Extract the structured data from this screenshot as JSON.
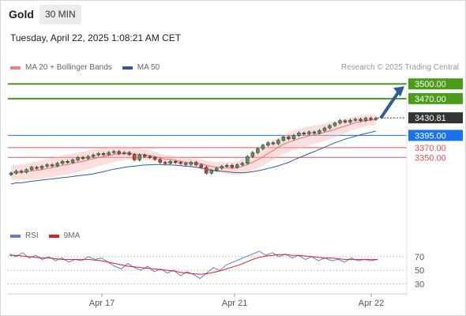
{
  "header": {
    "asset": "Gold",
    "timeframe": "30 MIN",
    "timestamp": "Tuesday, April 22, 2025 1:08:21 AM CET"
  },
  "legend": {
    "ma20": "MA 20 + Bollinger Bands",
    "ma50": "MA 50",
    "credit": "Research © 2025 Trading Central",
    "ma20_color": "#f08080",
    "ma50_color": "#2e5c9a"
  },
  "rsi_legend": {
    "rsi": "RSI",
    "ma9": "9MA",
    "rsi_color": "#5b7fd6",
    "ma9_color": "#e02020"
  },
  "chart_data": [
    {
      "type": "candlestick",
      "title": "Gold 30 MIN",
      "xlabel": "",
      "ylabel": "",
      "x_ticks": [
        "Apr 17",
        "Apr 21",
        "Apr 22"
      ],
      "ylim": [
        3220,
        3510
      ],
      "series": [
        {
          "name": "MA 20 + Bollinger Bands",
          "color": "#f08080"
        },
        {
          "name": "MA 50",
          "color": "#2e5c9a"
        }
      ],
      "price_levels": [
        {
          "label": "3500.00",
          "value": 3500.0,
          "color": "#4a9c1a",
          "kind": "resistance"
        },
        {
          "label": "3470.00",
          "value": 3470.0,
          "color": "#4a9c1a",
          "kind": "resistance"
        },
        {
          "label": "3430.81",
          "value": 3430.81,
          "color": "#333333",
          "kind": "last"
        },
        {
          "label": "3395.00",
          "value": 3395.0,
          "color": "#1a73e8",
          "kind": "pivot"
        },
        {
          "label": "3370.00",
          "value": 3370.0,
          "color": "#e05050",
          "kind": "support"
        },
        {
          "label": "3350.00",
          "value": 3350.0,
          "color": "#e05050",
          "kind": "support"
        }
      ],
      "arrow": {
        "direction": "up",
        "color": "#2e5c9a"
      },
      "closes": [
        3318,
        3322,
        3320,
        3325,
        3330,
        3328,
        3332,
        3335,
        3333,
        3338,
        3342,
        3340,
        3345,
        3350,
        3348,
        3352,
        3355,
        3358,
        3356,
        3360,
        3362,
        3358,
        3360,
        3356,
        3345,
        3355,
        3352,
        3350,
        3346,
        3340,
        3338,
        3342,
        3340,
        3338,
        3336,
        3340,
        3335,
        3330,
        3318,
        3324,
        3328,
        3332,
        3334,
        3330,
        3335,
        3338,
        3352,
        3360,
        3368,
        3375,
        3380,
        3378,
        3385,
        3392,
        3388,
        3395,
        3400,
        3398,
        3402,
        3400,
        3405,
        3410,
        3415,
        3420,
        3425,
        3422,
        3426,
        3428,
        3425,
        3430,
        3428,
        3430
      ]
    },
    {
      "type": "line",
      "title": "RSI",
      "xlabel": "",
      "ylabel": "",
      "yticks": [
        70,
        50,
        30
      ],
      "ylim": [
        20,
        85
      ],
      "series": [
        {
          "name": "RSI",
          "color": "#5b7fd6",
          "values": [
            74,
            70,
            76,
            68,
            72,
            66,
            70,
            64,
            68,
            62,
            66,
            64,
            70,
            66,
            68,
            62,
            56,
            52,
            60,
            54,
            50,
            56,
            48,
            52,
            46,
            50,
            42,
            48,
            44,
            38,
            46,
            54,
            50,
            58,
            62,
            66,
            70,
            74,
            78,
            72,
            76,
            70,
            74,
            68,
            72,
            66,
            70,
            64,
            68,
            64,
            66,
            62,
            68,
            64,
            66,
            64,
            66
          ]
        },
        {
          "name": "9MA",
          "color": "#e02020",
          "values": [
            72,
            72,
            71,
            70,
            69,
            68,
            68,
            67,
            66,
            66,
            66,
            66,
            66,
            65,
            64,
            62,
            60,
            58,
            56,
            55,
            54,
            53,
            52,
            51,
            50,
            49,
            47,
            46,
            45,
            44,
            45,
            47,
            49,
            52,
            55,
            58,
            62,
            66,
            69,
            71,
            72,
            73,
            73,
            72,
            72,
            71,
            70,
            69,
            68,
            68,
            67,
            66,
            66,
            66,
            66,
            66,
            66
          ]
        }
      ]
    }
  ]
}
